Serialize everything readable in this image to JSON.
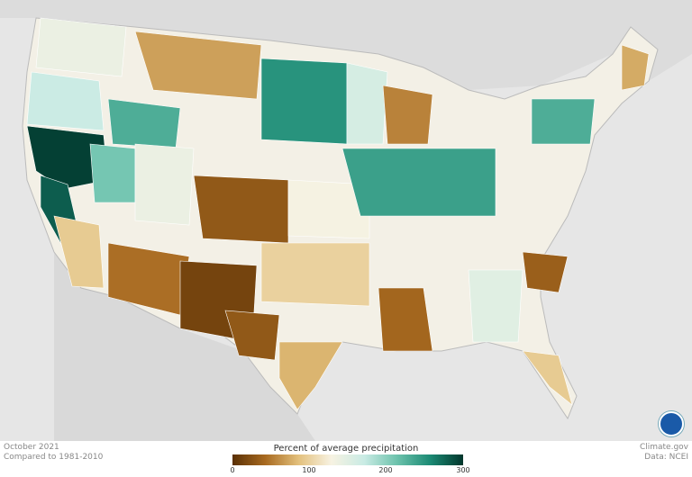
{
  "footer": {
    "date": "October 2021",
    "baseline": "Compared to 1981-2010",
    "source": "Climate.gov",
    "data": "Data: NCEI"
  },
  "legend": {
    "title": "Percent of average precipitation",
    "ticks": [
      "0",
      "100",
      "200",
      "300"
    ],
    "min": 0,
    "max": 300,
    "colors": [
      "#5a3005",
      "#a86a20",
      "#e3c07c",
      "#f7f2e2",
      "#c9ebe4",
      "#6cc2ac",
      "#1b8a74",
      "#01362c"
    ]
  },
  "logo": "NOAA",
  "colors": {
    "background": "#e6e6e6",
    "land": "#d6d6d6"
  },
  "regions": [
    {
      "name": "northern-california-nevada",
      "pct": 295
    },
    {
      "name": "central-california",
      "pct": 280
    },
    {
      "name": "oregon-west",
      "pct": 170
    },
    {
      "name": "washington",
      "pct": 140
    },
    {
      "name": "idaho-east",
      "pct": 230
    },
    {
      "name": "nevada-east",
      "pct": 210
    },
    {
      "name": "utah",
      "pct": 140
    },
    {
      "name": "montana",
      "pct": 70
    },
    {
      "name": "north-dakota",
      "pct": 250
    },
    {
      "name": "minnesota",
      "pct": 160
    },
    {
      "name": "wisconsin",
      "pct": 55
    },
    {
      "name": "colorado-west",
      "pct": 30
    },
    {
      "name": "kansas",
      "pct": 130
    },
    {
      "name": "missouri-indiana",
      "pct": 240
    },
    {
      "name": "new-york",
      "pct": 230
    },
    {
      "name": "arizona-south",
      "pct": 45
    },
    {
      "name": "new-mexico",
      "pct": 15
    },
    {
      "name": "west-texas",
      "pct": 30
    },
    {
      "name": "arkansas-louisiana",
      "pct": 40
    },
    {
      "name": "south-carolina",
      "pct": 35
    },
    {
      "name": "georgia-alabama",
      "pct": 150
    },
    {
      "name": "south-texas",
      "pct": 80
    },
    {
      "name": "florida",
      "pct": 95
    },
    {
      "name": "oklahoma",
      "pct": 100
    },
    {
      "name": "southern-california",
      "pct": 95
    },
    {
      "name": "maine",
      "pct": 75
    }
  ]
}
